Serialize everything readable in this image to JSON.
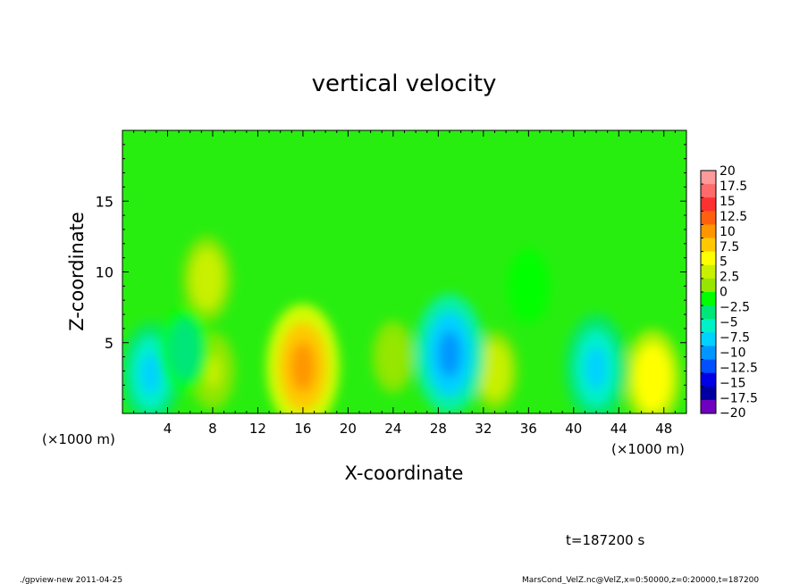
{
  "chart_data": {
    "type": "heatmap",
    "title": "vertical velocity",
    "xlabel": "X-coordinate",
    "ylabel": "Z-coordinate",
    "x_unit_left": "(×1000 m)",
    "x_unit_right": "(×1000 m)",
    "x_ticks": [
      "4",
      "8",
      "12",
      "16",
      "20",
      "24",
      "28",
      "32",
      "36",
      "40",
      "44",
      "48"
    ],
    "x_tick_values": [
      4,
      8,
      12,
      16,
      20,
      24,
      28,
      32,
      36,
      40,
      44,
      48
    ],
    "xlim": [
      0,
      50
    ],
    "y_ticks": [
      "5",
      "10",
      "15"
    ],
    "y_tick_values": [
      5,
      10,
      15
    ],
    "ylim": [
      0,
      20
    ],
    "features": [
      {
        "x": 16.0,
        "z": 3.3,
        "value": 11
      },
      {
        "x": 7.5,
        "z": 9.5,
        "value": 4
      },
      {
        "x": 8.0,
        "z": 3.0,
        "value": 2.5
      },
      {
        "x": 47.0,
        "z": 2.5,
        "value": 6
      },
      {
        "x": 33.0,
        "z": 3.0,
        "value": 3
      },
      {
        "x": 24.0,
        "z": 4.0,
        "value": 1.5
      },
      {
        "x": 29.0,
        "z": 4.2,
        "value": -10
      },
      {
        "x": 2.5,
        "z": 2.8,
        "value": -7
      },
      {
        "x": 42.0,
        "z": 3.2,
        "value": -8
      },
      {
        "x": 5.5,
        "z": 4.5,
        "value": -4
      },
      {
        "x": 36.0,
        "z": 9.0,
        "value": -2
      }
    ],
    "colorbar": {
      "labels": [
        "20",
        "17.5",
        "15",
        "12.5",
        "10",
        "7.5",
        "5",
        "2.5",
        "0",
        "−2.5",
        "−5",
        "−7.5",
        "−10",
        "−12.5",
        "−15",
        "−17.5",
        "−20"
      ],
      "colors": [
        "#ff9a9a",
        "#ff6a6a",
        "#ff3030",
        "#ff6010",
        "#ff9600",
        "#ffc800",
        "#ffff00",
        "#c8f000",
        "#96e600",
        "#00ff00",
        "#00e678",
        "#00f0c8",
        "#00d2ff",
        "#0096ff",
        "#0050ff",
        "#0000e6",
        "#0000a0",
        "#7000c0"
      ]
    }
  },
  "footer": {
    "time": "t=187200 s",
    "left_info": "./gpview-new   2011-04-25",
    "right_info": "MarsCond_VelZ.nc@VelZ,x=0:50000,z=0:20000,t=187200"
  }
}
